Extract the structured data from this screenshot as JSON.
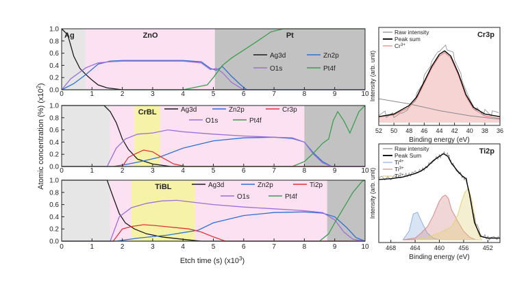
{
  "colors": {
    "Ag3d": "#1a1a1a",
    "Zn2p": "#2f6fce",
    "O1s": "#9b6fd6",
    "Pt4f": "#3a9e4e",
    "Cr3p": "#d8353a",
    "Ti2p": "#d8353a",
    "band_ag": "#e6e6e6",
    "band_zno": "#fbe1f2",
    "band_pt": "#c2c2c2",
    "band_bl": "#f6f2a8",
    "raw": "#888888",
    "peak": "#000000",
    "cr3": "#e08080",
    "cr3_fill": "#f7d4d4",
    "ti4": "#8fb2dc",
    "ti3": "#d48a8a",
    "ti2": "#e2d27a"
  },
  "figure": {
    "ylabel_left": "Atomic concentration (%) (x10",
    "ylabel_left_sup": "2",
    "ylabel_left_tail": ")",
    "xlabel_left": "Etch time (s) (x10",
    "xlabel_left_sup": "3",
    "xlabel_left_tail": ")",
    "intensity_label": "Intensity (arb. unit)",
    "binding_label": "Binding energy (eV)"
  },
  "chart_data": [
    {
      "id": "top",
      "type": "line",
      "xlim": [
        0,
        10
      ],
      "ylim": [
        0,
        1.0
      ],
      "xticks": [
        "0",
        "1",
        "2",
        "3",
        "4",
        "5",
        "6",
        "7",
        "8",
        "9",
        "10"
      ],
      "yticks": [
        "0.0",
        "0.2",
        "0.4",
        "0.6",
        "0.8",
        "1.0"
      ],
      "bands": [
        {
          "from": 0,
          "to": 0.8,
          "kind": "ag",
          "label": "Ag"
        },
        {
          "from": 0.8,
          "to": 5.05,
          "kind": "zno",
          "label": "ZnO"
        },
        {
          "from": 5.05,
          "to": 10,
          "kind": "pt",
          "label": "Pt"
        }
      ],
      "legend": [
        "Ag3d",
        "Zn2p",
        "O1s",
        "Pt4f"
      ],
      "series": [
        {
          "name": "Ag3d",
          "x": [
            0,
            0.2,
            0.4,
            0.6,
            0.8,
            1.0,
            1.2,
            1.5,
            2,
            3,
            10
          ],
          "y": [
            1.0,
            0.9,
            0.55,
            0.35,
            0.25,
            0.16,
            0.08,
            0.03,
            0,
            0,
            0
          ]
        },
        {
          "name": "Zn2p",
          "x": [
            0,
            0.4,
            0.8,
            1.2,
            1.6,
            2,
            3,
            4,
            4.6,
            4.9,
            5.1,
            5.3,
            5.6,
            5.9,
            6.1,
            10
          ],
          "y": [
            0,
            0.1,
            0.25,
            0.42,
            0.47,
            0.48,
            0.48,
            0.48,
            0.46,
            0.35,
            0.32,
            0.38,
            0.22,
            0.08,
            0,
            0
          ]
        },
        {
          "name": "O1s",
          "x": [
            0,
            0.3,
            0.8,
            1.2,
            1.6,
            2,
            3,
            4,
            4.6,
            4.9,
            5.1,
            5.3,
            5.6,
            6,
            10
          ],
          "y": [
            0,
            0.18,
            0.36,
            0.44,
            0.46,
            0.47,
            0.47,
            0.47,
            0.44,
            0.33,
            0.35,
            0.28,
            0.12,
            0,
            0
          ]
        },
        {
          "name": "Pt4f",
          "x": [
            0,
            4,
            4.8,
            5.0,
            5.3,
            5.6,
            6,
            6.4,
            6.9,
            7.3,
            10
          ],
          "y": [
            0,
            0,
            0.08,
            0.2,
            0.4,
            0.52,
            0.65,
            0.78,
            0.95,
            1.0,
            1.0
          ]
        }
      ]
    },
    {
      "id": "mid",
      "type": "line",
      "xlim": [
        0,
        10
      ],
      "ylim": [
        0,
        1.0
      ],
      "xticks": [
        "0",
        "1",
        "2",
        "3",
        "4",
        "5",
        "6",
        "7",
        "8",
        "9",
        "10"
      ],
      "yticks": [
        "0.0",
        "0.2",
        "0.4",
        "0.6",
        "0.8",
        "1.0"
      ],
      "bands": [
        {
          "from": 0,
          "to": 1.6,
          "kind": "ag",
          "label": ""
        },
        {
          "from": 1.6,
          "to": 2.4,
          "kind": "zno",
          "label": ""
        },
        {
          "from": 2.4,
          "to": 3.25,
          "kind": "bl",
          "label": "CrBL"
        },
        {
          "from": 3.25,
          "to": 8.0,
          "kind": "zno",
          "label": ""
        },
        {
          "from": 8.0,
          "to": 10,
          "kind": "pt",
          "label": ""
        }
      ],
      "legend": [
        "Ag3d",
        "Zn2p",
        "Cr3p",
        "O1s",
        "Pt4f"
      ],
      "series": [
        {
          "name": "Ag3d",
          "x": [
            0,
            1.4,
            1.6,
            1.8,
            2.0,
            2.2,
            2.5,
            3.0,
            3.6,
            10
          ],
          "y": [
            1.0,
            1.0,
            0.9,
            0.72,
            0.45,
            0.28,
            0.12,
            0.04,
            0,
            0
          ]
        },
        {
          "name": "Zn2p",
          "x": [
            0,
            1.7,
            2.2,
            2.6,
            3.2,
            4,
            5,
            6,
            7,
            7.6,
            8,
            8.3,
            8.6,
            8.9,
            10
          ],
          "y": [
            0,
            0,
            0.04,
            0.08,
            0.15,
            0.3,
            0.42,
            0.47,
            0.48,
            0.46,
            0.4,
            0.22,
            0.08,
            0,
            0
          ]
        },
        {
          "name": "Cr3p",
          "x": [
            0,
            2.0,
            2.2,
            2.4,
            2.7,
            3.0,
            3.3,
            3.7,
            4.1,
            10
          ],
          "y": [
            0,
            0,
            0.15,
            0.2,
            0.27,
            0.24,
            0.15,
            0.04,
            0,
            0
          ]
        },
        {
          "name": "O1s",
          "x": [
            0,
            1.5,
            1.8,
            2.1,
            2.5,
            3,
            3.5,
            4,
            5,
            6,
            7,
            7.6,
            8,
            8.3,
            8.6,
            8.9,
            10
          ],
          "y": [
            0,
            0,
            0.3,
            0.45,
            0.53,
            0.55,
            0.6,
            0.57,
            0.53,
            0.5,
            0.48,
            0.47,
            0.4,
            0.2,
            0.06,
            0,
            0
          ]
        },
        {
          "name": "Pt4f",
          "x": [
            0,
            7.6,
            8,
            8.3,
            8.6,
            8.8,
            8.95,
            9.1,
            9.3,
            9.5,
            9.8,
            10
          ],
          "y": [
            0,
            0,
            0.08,
            0.22,
            0.38,
            0.45,
            0.75,
            0.9,
            0.75,
            0.55,
            0.9,
            1.0
          ]
        }
      ]
    },
    {
      "id": "bot",
      "type": "line",
      "xlim": [
        0,
        10
      ],
      "ylim": [
        0,
        1.0
      ],
      "xticks": [
        "0",
        "1",
        "2",
        "3",
        "4",
        "5",
        "6",
        "7",
        "8",
        "9",
        "10"
      ],
      "yticks": [
        "0.0",
        "0.2",
        "0.4",
        "0.6",
        "0.8",
        "1.0"
      ],
      "bands": [
        {
          "from": 0,
          "to": 1.6,
          "kind": "ag",
          "label": ""
        },
        {
          "from": 1.6,
          "to": 2.3,
          "kind": "zno",
          "label": ""
        },
        {
          "from": 2.3,
          "to": 4.4,
          "kind": "bl",
          "label": "TiBL"
        },
        {
          "from": 4.4,
          "to": 8.75,
          "kind": "zno",
          "label": ""
        },
        {
          "from": 8.75,
          "to": 10,
          "kind": "pt",
          "label": ""
        }
      ],
      "legend": [
        "Ag3d",
        "Zn2p",
        "Ti2p",
        "O1s",
        "Pt4f"
      ],
      "series": [
        {
          "name": "Ag3d",
          "x": [
            0,
            1.5,
            1.7,
            1.9,
            2.1,
            2.4,
            2.8,
            3.3,
            4,
            4.6,
            10
          ],
          "y": [
            1.0,
            1.0,
            0.72,
            0.45,
            0.3,
            0.2,
            0.12,
            0.07,
            0.03,
            0,
            0
          ]
        },
        {
          "name": "Zn2p",
          "x": [
            0,
            1.8,
            2.5,
            3.5,
            4.5,
            5,
            6,
            7,
            8,
            8.6,
            9,
            9.4,
            9.7,
            10
          ],
          "y": [
            0,
            0,
            0.05,
            0.1,
            0.18,
            0.3,
            0.42,
            0.47,
            0.48,
            0.46,
            0.4,
            0.22,
            0.06,
            0
          ]
        },
        {
          "name": "Ti2p",
          "x": [
            0,
            1.7,
            2.0,
            2.3,
            2.7,
            3,
            3.6,
            4.2,
            4.6,
            5,
            5.4,
            10
          ],
          "y": [
            0,
            0,
            0.2,
            0.24,
            0.27,
            0.26,
            0.23,
            0.2,
            0.15,
            0.07,
            0,
            0
          ]
        },
        {
          "name": "O1s",
          "x": [
            0,
            1.6,
            1.9,
            2.3,
            2.8,
            3.3,
            3.8,
            4.3,
            5,
            6,
            7,
            8,
            8.6,
            9,
            9.3,
            9.6,
            10
          ],
          "y": [
            0,
            0,
            0.4,
            0.55,
            0.62,
            0.66,
            0.67,
            0.64,
            0.6,
            0.56,
            0.53,
            0.5,
            0.47,
            0.35,
            0.15,
            0.03,
            0
          ]
        },
        {
          "name": "Pt4f",
          "x": [
            0,
            8.5,
            8.8,
            9.0,
            9.3,
            9.6,
            9.9,
            10
          ],
          "y": [
            0,
            0,
            0.12,
            0.3,
            0.55,
            0.8,
            0.98,
            1.0
          ]
        }
      ]
    },
    {
      "id": "cr3p",
      "type": "line",
      "title": "Cr3p",
      "xlim": [
        52,
        36
      ],
      "ylim": [
        0,
        1
      ],
      "xticks": [
        "52",
        "50",
        "48",
        "46",
        "44",
        "42",
        "40",
        "38",
        "36"
      ],
      "legend": [
        "Raw intensity",
        "Peak sum",
        "Cr3+"
      ],
      "series": [
        {
          "name": "Raw intensity",
          "x": [
            52,
            51,
            50,
            49,
            48,
            47,
            46,
            45,
            44,
            43,
            42,
            41,
            40,
            39,
            38,
            37,
            36
          ],
          "y": [
            0.08,
            0.1,
            0.12,
            0.16,
            0.22,
            0.32,
            0.5,
            0.66,
            0.8,
            0.86,
            0.78,
            0.55,
            0.32,
            0.18,
            0.12,
            0.08,
            0.08
          ]
        },
        {
          "name": "Peak sum",
          "x": [
            52,
            50,
            48,
            47,
            46,
            45,
            44,
            43.3,
            42.5,
            41.5,
            40.5,
            39.5,
            38,
            36
          ],
          "y": [
            0.07,
            0.1,
            0.2,
            0.3,
            0.48,
            0.66,
            0.8,
            0.84,
            0.78,
            0.58,
            0.33,
            0.18,
            0.1,
            0.07
          ]
        },
        {
          "name": "Cr3+",
          "x": [
            52,
            50,
            48,
            47,
            46,
            45,
            44,
            43.3,
            42.5,
            41.5,
            40.5,
            39.5,
            38,
            36
          ],
          "y": [
            0.07,
            0.09,
            0.18,
            0.28,
            0.46,
            0.64,
            0.78,
            0.82,
            0.76,
            0.56,
            0.31,
            0.16,
            0.08,
            0.05
          ]
        }
      ],
      "background": {
        "x": [
          52,
          48,
          44,
          40,
          36
        ],
        "y": [
          0.28,
          0.22,
          0.14,
          0.08,
          0.04
        ]
      }
    },
    {
      "id": "ti2p",
      "type": "line",
      "title": "Ti2p",
      "xlim": [
        470,
        450
      ],
      "ylim": [
        0,
        1
      ],
      "xticks": [
        "468",
        "464",
        "460",
        "456",
        "452"
      ],
      "legend": [
        "Raw intensity",
        "Peak Sum",
        "Ti4+",
        "Ti3+",
        "Ti2+"
      ],
      "series": [
        {
          "name": "Raw intensity",
          "x": [
            470,
            468,
            466,
            465,
            464,
            463,
            462,
            461,
            460,
            459.2,
            458.5,
            458,
            457,
            456,
            455.5,
            455,
            454,
            453,
            452,
            451,
            450
          ],
          "y": [
            0.72,
            0.72,
            0.74,
            0.76,
            0.78,
            0.8,
            0.86,
            0.92,
            0.97,
            1.0,
            0.98,
            0.9,
            0.8,
            0.72,
            0.7,
            0.5,
            0.2,
            0.05,
            0.02,
            0.02,
            0.02
          ]
        },
        {
          "name": "Peak Sum",
          "x": [
            470,
            468,
            466,
            464,
            463,
            462,
            461,
            460,
            459.3,
            458.6,
            458,
            457,
            456.2,
            455.6,
            455,
            454.2,
            453.2,
            452,
            450
          ],
          "y": [
            0.7,
            0.71,
            0.73,
            0.77,
            0.8,
            0.85,
            0.92,
            0.97,
            1.0,
            0.97,
            0.89,
            0.8,
            0.74,
            0.71,
            0.52,
            0.2,
            0.04,
            0.02,
            0.02
          ]
        },
        {
          "name": "Ti4+",
          "x": [
            466,
            465,
            464.3,
            463.6,
            463,
            462,
            461,
            460,
            459,
            458
          ],
          "y": [
            0,
            0.1,
            0.3,
            0.32,
            0.22,
            0.08,
            0.02,
            0,
            0,
            0
          ]
        },
        {
          "name": "Ti3+",
          "x": [
            466,
            464,
            463,
            462,
            461,
            460,
            459.5,
            459,
            458.5,
            458,
            457.6,
            457,
            456,
            455,
            454
          ],
          "y": [
            0,
            0.02,
            0.08,
            0.15,
            0.28,
            0.45,
            0.5,
            0.52,
            0.48,
            0.35,
            0.3,
            0.22,
            0.1,
            0.03,
            0
          ]
        },
        {
          "name": "Ti2+",
          "x": [
            464,
            462,
            460,
            458,
            457,
            456.3,
            455.8,
            455.2,
            454.7,
            454,
            453.5,
            453
          ],
          "y": [
            0,
            0.03,
            0.08,
            0.15,
            0.28,
            0.45,
            0.55,
            0.6,
            0.48,
            0.2,
            0.05,
            0
          ]
        }
      ]
    }
  ],
  "legend_labels": {
    "Ag3d": "Ag3d",
    "Zn2p": "Zn2p",
    "O1s": "O1s",
    "Pt4f": "Pt4f",
    "Cr3p": "Cr3p",
    "Ti2p": "Ti2p",
    "raw": "Raw intensity",
    "peak_cr": "Peak sum",
    "peak_ti": "Peak Sum",
    "cr3_base": "Cr",
    "cr3_sup": "3+",
    "ti4_base": "Ti",
    "ti4_sup": "4+",
    "ti3_base": "Ti",
    "ti3_sup": "3+",
    "ti2_base": "Ti",
    "ti2_sup": "2+"
  }
}
